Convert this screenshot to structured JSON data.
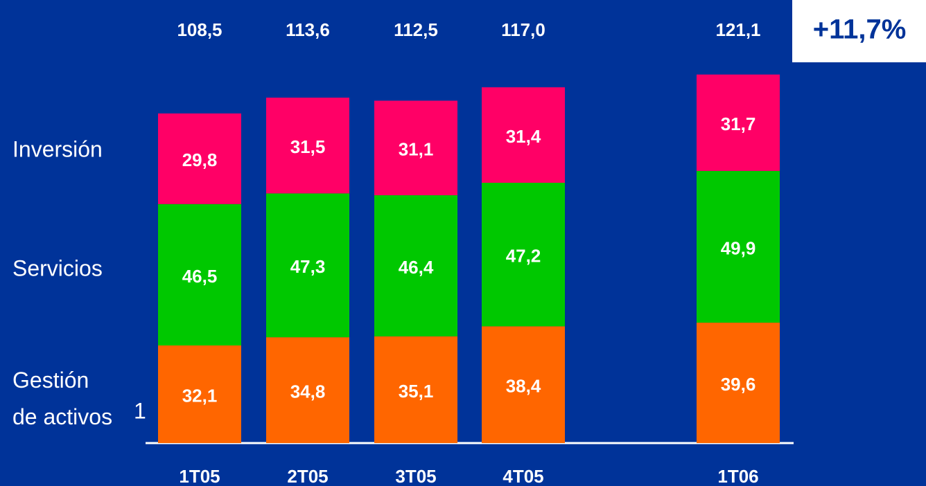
{
  "chart_data": {
    "type": "stacked_bar",
    "categories": [
      "1T05",
      "2T05",
      "3T05",
      "4T05",
      "1T06"
    ],
    "series": [
      {
        "name": "Gestión de activos",
        "color": "#ff6600",
        "values": [
          32.1,
          34.8,
          35.1,
          38.4,
          39.6
        ],
        "value_labels": [
          "32,1",
          "34,8",
          "35,1",
          "38,4",
          "39,6"
        ]
      },
      {
        "name": "Servicios",
        "color": "#00c800",
        "values": [
          46.5,
          47.3,
          46.4,
          47.2,
          49.9
        ],
        "value_labels": [
          "46,5",
          "47,3",
          "46,4",
          "47,2",
          "49,9"
        ]
      },
      {
        "name": "Inversión",
        "color": "#ff0066",
        "values": [
          29.8,
          31.5,
          31.1,
          31.4,
          31.7
        ],
        "value_labels": [
          "29,8",
          "31,5",
          "31,1",
          "31,4",
          "31,7"
        ]
      }
    ],
    "totals": [
      108.5,
      113.6,
      112.5,
      117.0,
      121.1
    ],
    "total_labels": [
      "108,5",
      "113,6",
      "112,5",
      "117,0",
      "121,1"
    ],
    "footnote_mark": "1",
    "annotation": "+11,7%",
    "ylim": [
      0,
      130
    ]
  }
}
